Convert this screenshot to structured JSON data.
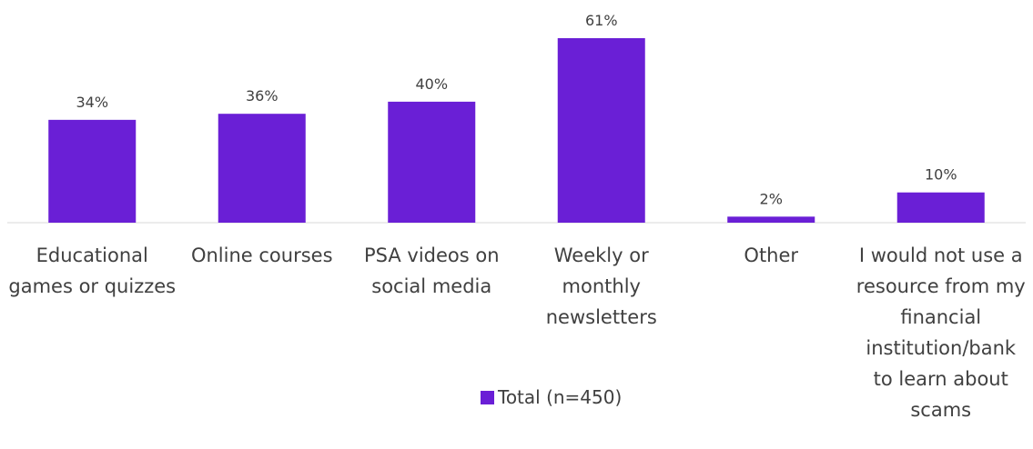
{
  "chart_data": {
    "type": "bar",
    "categories": [
      "Educational games or quizzes",
      "Online courses",
      "PSA videos on social media",
      "Weekly or monthly newsletters",
      "Other",
      "I would not use a resource from my financial institution/bank to learn about scams"
    ],
    "series": [
      {
        "name": "Total (n=450)",
        "color": "#6a1fd6",
        "values": [
          34,
          36,
          40,
          61,
          2,
          10
        ],
        "value_labels": [
          "34%",
          "36%",
          "40%",
          "61%",
          "2%",
          "10%"
        ]
      }
    ],
    "legend": "bottom"
  }
}
